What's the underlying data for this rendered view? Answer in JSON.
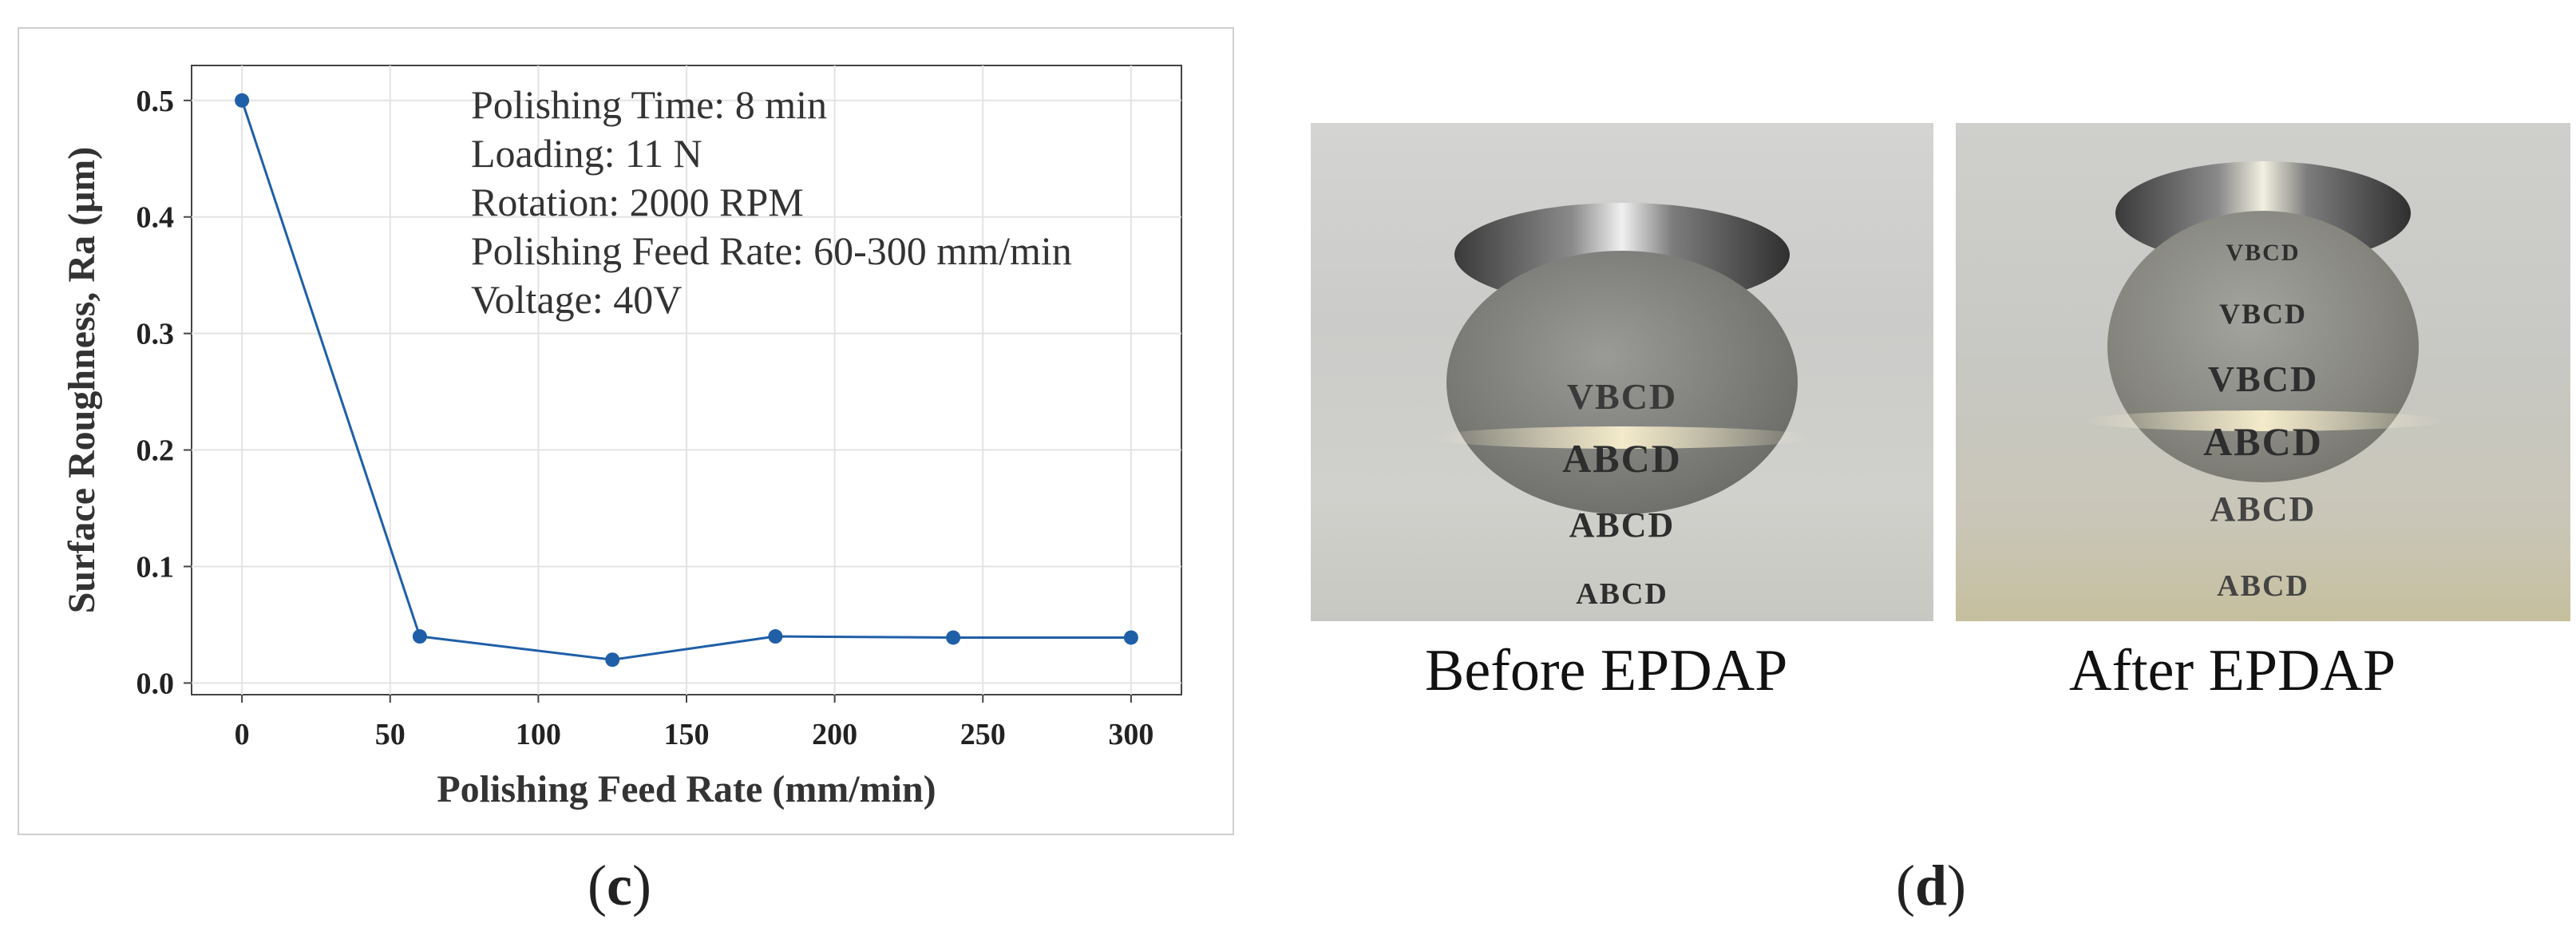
{
  "chart_data": {
    "type": "line",
    "xlabel": "Polishing Feed Rate (mm/min)",
    "ylabel": "Surface Roughness, Ra (μm)",
    "x": [
      0,
      60,
      125,
      180,
      240,
      300
    ],
    "y": [
      0.5,
      0.04,
      0.02,
      0.04,
      0.039,
      0.039
    ],
    "xlim": [
      -17,
      317
    ],
    "ylim": [
      -0.01,
      0.53
    ],
    "xticks": [
      "0",
      "50",
      "100",
      "150",
      "200",
      "250",
      "300"
    ],
    "yticks": [
      "0.0",
      "0.1",
      "0.2",
      "0.3",
      "0.4",
      "0.5"
    ],
    "grid": true,
    "line_color": "#1f5fa8",
    "annotation": [
      "Polishing Time: 8 min",
      "Loading: 11 N",
      "Rotation: 2000 RPM",
      "Polishing Feed Rate: 60-300 mm/min",
      "Voltage: 40V"
    ]
  },
  "panels": {
    "c_label": "c",
    "d_label": "d"
  },
  "photos": {
    "before_caption": "Before EPDAP",
    "after_caption": "After EPDAP",
    "before_text_lines": [
      "VBCD",
      "ABCD",
      "ABCD",
      "ABCD"
    ],
    "after_text_lines": [
      "VBCD",
      "VBCD",
      "VBCD",
      "ABCD",
      "ABCD",
      "ABCD"
    ]
  }
}
